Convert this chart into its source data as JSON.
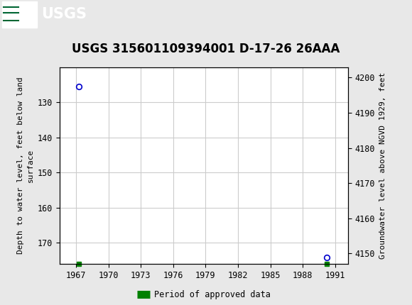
{
  "title": "USGS 315601109394001 D-17-26 26AAA",
  "ylabel_left": "Depth to water level, feet below land\nsurface",
  "ylabel_right": "Groundwater level above NGVD 1929, feet",
  "data_points": [
    {
      "year": 1967.3,
      "depth": 125.5
    },
    {
      "year": 1990.2,
      "depth": 174.2
    }
  ],
  "approved_markers": [
    {
      "year": 1967.3
    },
    {
      "year": 1990.2
    }
  ],
  "xlim": [
    1965.5,
    1992.2
  ],
  "xticks": [
    1967,
    1970,
    1973,
    1976,
    1979,
    1982,
    1985,
    1988,
    1991
  ],
  "ylim_left_top": 120,
  "ylim_left_bottom": 176,
  "yticks_left": [
    130,
    140,
    150,
    160,
    170
  ],
  "yticks_right": [
    4150,
    4160,
    4170,
    4180,
    4190,
    4200
  ],
  "grid_color": "#cccccc",
  "point_color": "#0000cc",
  "approved_color": "#008000",
  "header_color": "#006633",
  "figure_bg_color": "#e8e8e8",
  "plot_bg_color": "#ffffff",
  "land_surface_elevation": 4323.0,
  "legend_label": "Period of approved data",
  "title_fontsize": 12,
  "axis_label_fontsize": 8,
  "tick_fontsize": 8.5
}
